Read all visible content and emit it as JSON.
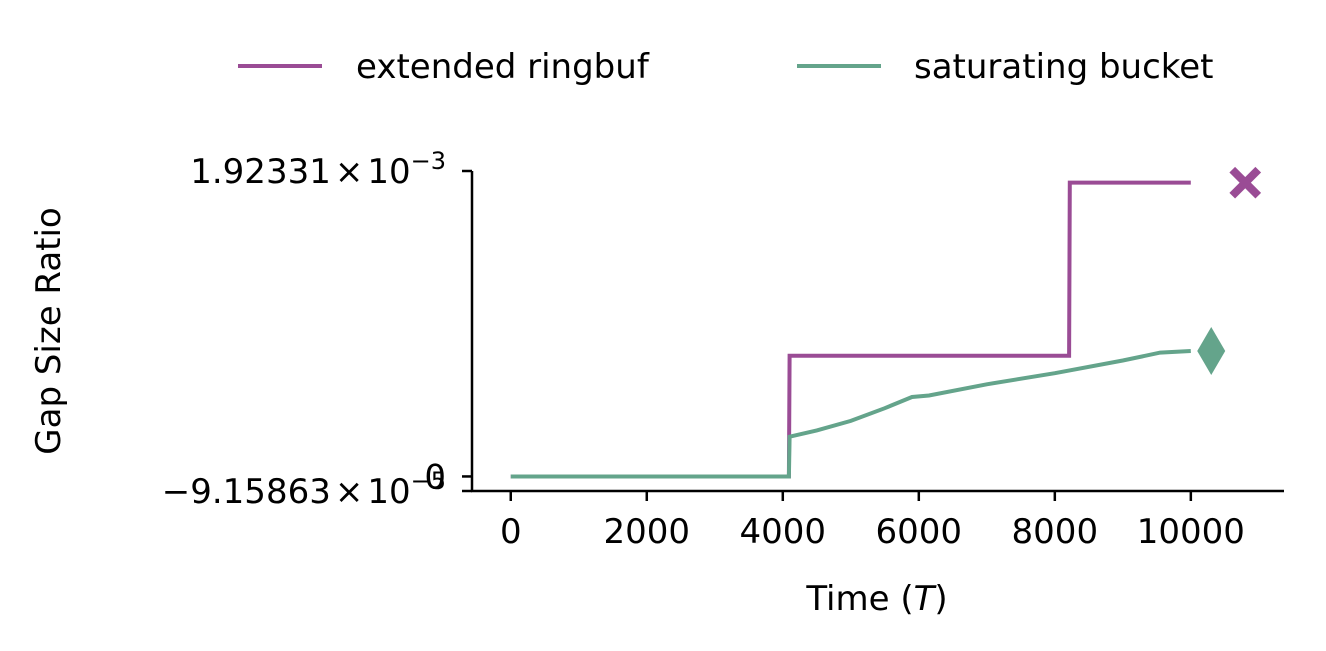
{
  "chart_data": {
    "type": "line",
    "xlabel": "Time",
    "xlabel_var": "T",
    "ylabel": "Gap Size Ratio",
    "xlim": [
      -570,
      11370
    ],
    "ylim": [
      -9.16e-05,
      0.00192331
    ],
    "x_ticks": [
      0,
      2000,
      4000,
      6000,
      8000,
      10000
    ],
    "x_tick_labels": [
      "0",
      "2000",
      "4000",
      "6000",
      "8000",
      "10000"
    ],
    "y_ticks": [
      {
        "value": 0.00192331,
        "mantissa": "1.92331",
        "times": "×",
        "base": "10",
        "exp": "−3"
      },
      {
        "value": 0,
        "mantissa": "0",
        "times": "",
        "base": "",
        "exp": ""
      },
      {
        "value": -9.15863e-05,
        "mantissa": "−9.15863",
        "times": "×",
        "base": "10",
        "exp": "−5"
      }
    ],
    "legend_position": "top",
    "grid": false,
    "series": [
      {
        "name": "extended ringbuf",
        "color": "#9a4c95",
        "end_marker": "x",
        "end_marker_x": 10800,
        "points": [
          [
            0,
            0
          ],
          [
            4090,
            0
          ],
          [
            4100,
            0.00076
          ],
          [
            8210,
            0.00076
          ],
          [
            8220,
            0.00185
          ],
          [
            10000,
            0.00185
          ]
        ]
      },
      {
        "name": "saturating bucket",
        "color": "#64a48b",
        "end_marker": "diamond",
        "end_marker_x": 10300,
        "points": [
          [
            0,
            0
          ],
          [
            4090,
            0
          ],
          [
            4100,
            0.00025
          ],
          [
            4500,
            0.00029
          ],
          [
            5000,
            0.00035
          ],
          [
            5500,
            0.00043
          ],
          [
            5900,
            0.0005
          ],
          [
            6150,
            0.00051
          ],
          [
            7000,
            0.00058
          ],
          [
            8000,
            0.00065
          ],
          [
            9000,
            0.00073
          ],
          [
            9550,
            0.00078
          ],
          [
            10000,
            0.00079
          ]
        ]
      }
    ]
  }
}
